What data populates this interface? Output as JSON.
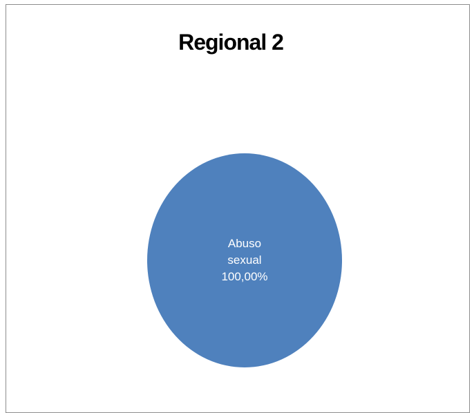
{
  "chart_data": {
    "type": "pie",
    "title": "Regional 2",
    "slices": [
      {
        "category": "Abuso sexual",
        "value": 100.0,
        "label_lines": [
          "Abuso",
          "sexual",
          "100,00%"
        ],
        "color": "#4f81bd"
      }
    ],
    "legend": "none"
  }
}
